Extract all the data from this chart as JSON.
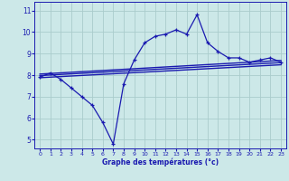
{
  "xlabel": "Graphe des températures (°c)",
  "bg_color": "#cce8e8",
  "grid_color": "#aacccc",
  "line_color": "#1a1ab0",
  "x_ticks": [
    0,
    1,
    2,
    3,
    4,
    5,
    6,
    7,
    8,
    9,
    10,
    11,
    12,
    13,
    14,
    15,
    16,
    17,
    18,
    19,
    20,
    21,
    22,
    23
  ],
  "y_ticks": [
    5,
    6,
    7,
    8,
    9,
    10,
    11
  ],
  "ylim": [
    4.6,
    11.4
  ],
  "xlim": [
    -0.5,
    23.5
  ],
  "curve_x": [
    0,
    1,
    2,
    3,
    4,
    5,
    6,
    7,
    8,
    9,
    10,
    11,
    12,
    13,
    14,
    15,
    16,
    17,
    18,
    19,
    20,
    21,
    22,
    23
  ],
  "curve_y": [
    7.9,
    8.1,
    7.8,
    7.4,
    7.0,
    6.6,
    5.8,
    4.8,
    7.6,
    8.7,
    9.5,
    9.8,
    9.9,
    10.1,
    9.9,
    10.8,
    9.5,
    9.1,
    8.8,
    8.8,
    8.6,
    8.7,
    8.8,
    8.6
  ],
  "line1_x": [
    0,
    23
  ],
  "line1_y": [
    7.98,
    8.58
  ],
  "line2_x": [
    0,
    23
  ],
  "line2_y": [
    8.05,
    8.68
  ],
  "line3_x": [
    0,
    23
  ],
  "line3_y": [
    7.88,
    8.48
  ]
}
